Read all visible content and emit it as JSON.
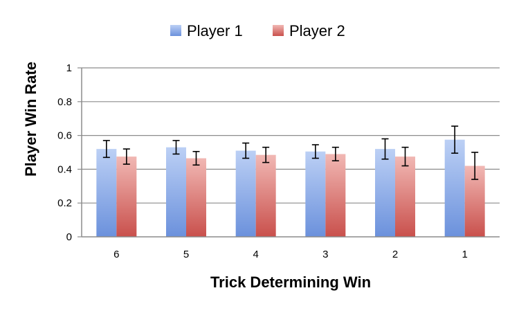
{
  "chart_data": {
    "type": "bar",
    "categories": [
      "6",
      "5",
      "4",
      "3",
      "2",
      "1"
    ],
    "series": [
      {
        "name": "Player 1",
        "color": "#7f9fe0",
        "values": [
          0.52,
          0.53,
          0.51,
          0.505,
          0.52,
          0.575
        ],
        "error": [
          0.05,
          0.04,
          0.045,
          0.04,
          0.06,
          0.08
        ]
      },
      {
        "name": "Player 2",
        "color": "#d9706c",
        "values": [
          0.475,
          0.465,
          0.485,
          0.49,
          0.475,
          0.42
        ],
        "error": [
          0.045,
          0.04,
          0.045,
          0.04,
          0.055,
          0.08
        ]
      }
    ],
    "xlabel": "Trick Determining Win",
    "ylabel": "Player Win Rate",
    "ylim": [
      0,
      1
    ],
    "yticks": [
      "0",
      "0.2",
      "0.4",
      "0.6",
      "0.8",
      "1"
    ],
    "grid": true,
    "legend": "top-center"
  }
}
